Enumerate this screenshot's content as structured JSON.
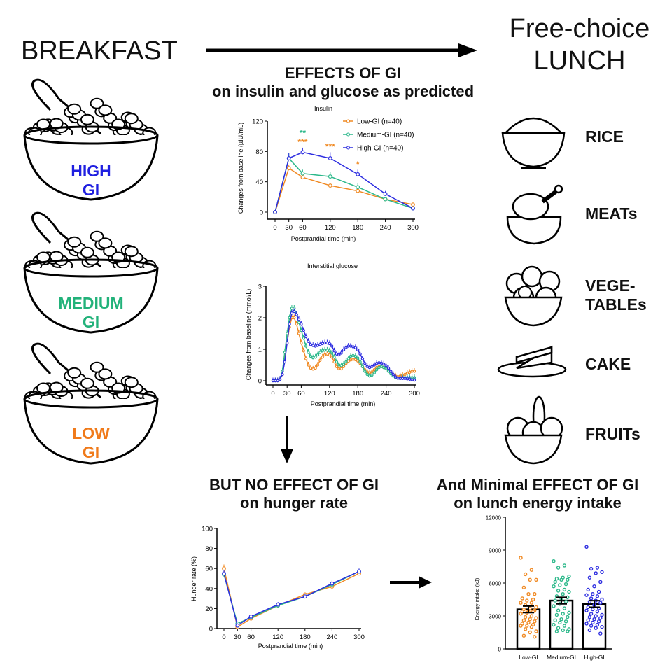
{
  "header": {
    "left_title": "BREAKFAST",
    "right_title_line1": "Free-choice",
    "right_title_line2": "LUNCH"
  },
  "sections": {
    "predicted_line1": "EFFECTS OF GI",
    "predicted_line2": "on insulin and glucose as predicted",
    "hunger_line1": "BUT NO EFFECT OF GI",
    "hunger_line2": "on hunger rate",
    "energy_line1": "And Minimal EFFECT OF GI",
    "energy_line2": "on lunch energy intake"
  },
  "breakfasts": [
    {
      "line1": "HIGH",
      "line2": "GI",
      "color": "#1f1fe0"
    },
    {
      "line1": "MEDIUM",
      "line2": "GI",
      "color": "#22b27a"
    },
    {
      "line1": "LOW",
      "line2": "GI",
      "color": "#f07a1a"
    }
  ],
  "lunch_foods": [
    {
      "label": "RICE",
      "icon": "rice-bowl-icon"
    },
    {
      "label": "MEATs",
      "icon": "chicken-leg-icon"
    },
    {
      "label": "VEGE-\nTABLEs",
      "icon": "vegetable-bowl-icon"
    },
    {
      "label": "CAKE",
      "icon": "cake-slice-icon"
    },
    {
      "label": "FRUITs",
      "icon": "fruit-bowl-icon"
    }
  ],
  "colors": {
    "low": "#f08a24",
    "medium": "#2bb88a",
    "high": "#2e2ee0"
  },
  "chart_data": [
    {
      "id": "insulin",
      "type": "line",
      "title": "Insulin",
      "xlabel": "Postprandial time (min)",
      "ylabel": "Changes from baseline (µIU/mL)",
      "xlim": [
        0,
        300
      ],
      "ylim": [
        0,
        120
      ],
      "xticks": [
        0,
        30,
        60,
        120,
        180,
        240,
        300
      ],
      "yticks": [
        0,
        40,
        80,
        120
      ],
      "x": [
        0,
        30,
        60,
        120,
        180,
        240,
        300
      ],
      "legend": "top-right",
      "series": [
        {
          "name": "Low-GI (n=40)",
          "key": "low",
          "values": [
            0,
            58,
            46,
            35,
            28,
            17,
            10
          ],
          "err": [
            0,
            4,
            3,
            3,
            2,
            3,
            2
          ]
        },
        {
          "name": "Medium-GI (n=40)",
          "key": "medium",
          "values": [
            0,
            71,
            51,
            47,
            33,
            17,
            5
          ],
          "err": [
            0,
            7,
            5,
            6,
            5,
            3,
            2
          ]
        },
        {
          "name": "High-GI (n=40)",
          "key": "high",
          "values": [
            0,
            71,
            79,
            71,
            50,
            24,
            5
          ],
          "err": [
            0,
            7,
            6,
            8,
            6,
            4,
            2
          ]
        }
      ],
      "annotations": [
        {
          "x": 60,
          "text": "**",
          "key": "medium",
          "level": 2
        },
        {
          "x": 60,
          "text": "***",
          "key": "low",
          "level": 1
        },
        {
          "x": 120,
          "text": "***",
          "key": "low",
          "level": 1
        },
        {
          "x": 180,
          "text": "*",
          "key": "low",
          "level": 1
        }
      ]
    },
    {
      "id": "glucose",
      "type": "line",
      "title": "Interstitial glucose",
      "xlabel": "Postprandial time (min)",
      "ylabel": "Changes from baseline (mmol/L)",
      "xlim": [
        0,
        300
      ],
      "ylim": [
        0,
        3
      ],
      "xticks": [
        0,
        30,
        60,
        120,
        180,
        240,
        300
      ],
      "yticks": [
        0,
        1,
        2,
        3
      ],
      "x_step": 5,
      "series": [
        {
          "name": "Low-GI",
          "key": "low",
          "values": [
            0,
            0,
            0,
            0.05,
            0.2,
            0.7,
            1.2,
            1.7,
            2.0,
            2.0,
            1.8,
            1.5,
            1.2,
            0.95,
            0.7,
            0.5,
            0.4,
            0.37,
            0.4,
            0.5,
            0.65,
            0.75,
            0.82,
            0.85,
            0.82,
            0.75,
            0.6,
            0.45,
            0.38,
            0.38,
            0.45,
            0.55,
            0.62,
            0.66,
            0.68,
            0.67,
            0.63,
            0.55,
            0.45,
            0.35,
            0.28,
            0.25,
            0.28,
            0.35,
            0.42,
            0.45,
            0.45,
            0.42,
            0.38,
            0.32,
            0.25,
            0.2,
            0.15,
            0.13,
            0.15,
            0.18,
            0.2,
            0.24,
            0.27,
            0.3,
            0.3
          ]
        },
        {
          "name": "Medium-GI",
          "key": "medium",
          "values": [
            0,
            0,
            0,
            0.05,
            0.3,
            0.9,
            1.5,
            2.0,
            2.3,
            2.3,
            2.1,
            1.85,
            1.6,
            1.35,
            1.1,
            0.9,
            0.78,
            0.73,
            0.75,
            0.82,
            0.9,
            0.95,
            0.97,
            0.97,
            0.95,
            0.88,
            0.75,
            0.6,
            0.5,
            0.48,
            0.52,
            0.6,
            0.7,
            0.78,
            0.8,
            0.78,
            0.72,
            0.6,
            0.45,
            0.3,
            0.2,
            0.15,
            0.18,
            0.25,
            0.35,
            0.42,
            0.45,
            0.42,
            0.38,
            0.3,
            0.22,
            0.15,
            0.1,
            0.08,
            0.08,
            0.1,
            0.1,
            0.1,
            0.1,
            0.1,
            0.1
          ]
        },
        {
          "name": "High-GI",
          "key": "high",
          "values": [
            0,
            0,
            0,
            0.05,
            0.2,
            0.6,
            1.2,
            1.8,
            2.15,
            2.2,
            2.1,
            1.95,
            1.8,
            1.6,
            1.4,
            1.25,
            1.15,
            1.12,
            1.1,
            1.12,
            1.15,
            1.18,
            1.2,
            1.2,
            1.18,
            1.1,
            0.95,
            0.85,
            0.82,
            0.88,
            0.98,
            1.05,
            1.1,
            1.1,
            1.08,
            1.05,
            0.98,
            0.85,
            0.7,
            0.55,
            0.45,
            0.42,
            0.45,
            0.5,
            0.55,
            0.57,
            0.56,
            0.53,
            0.48,
            0.4,
            0.3,
            0.2,
            0.12,
            0.08,
            0.07,
            0.07,
            0.07,
            0.06,
            0.05,
            0.03,
            0.02
          ]
        }
      ]
    },
    {
      "id": "hunger",
      "type": "line",
      "title": "",
      "xlabel": "Postprandial time (min)",
      "ylabel": "Hunger rate (%)",
      "xlim": [
        0,
        300
      ],
      "ylim": [
        0,
        100
      ],
      "xticks": [
        0,
        30,
        60,
        120,
        180,
        240,
        300
      ],
      "yticks": [
        0,
        20,
        40,
        60,
        80,
        100
      ],
      "x": [
        0,
        30,
        60,
        120,
        180,
        240,
        300
      ],
      "series": [
        {
          "name": "Low-GI",
          "key": "low",
          "values": [
            60,
            1.5,
            10,
            23,
            34,
            42,
            55
          ],
          "err": [
            4,
            1,
            1.5,
            2,
            2,
            2,
            2
          ]
        },
        {
          "name": "Medium-GI",
          "key": "medium",
          "values": [
            54,
            5,
            11,
            23,
            32,
            44,
            57
          ],
          "err": [
            3,
            2,
            1.5,
            2,
            2,
            3,
            2
          ]
        },
        {
          "name": "High-GI",
          "key": "high",
          "values": [
            55,
            3,
            12,
            24,
            32,
            45,
            57
          ],
          "err": [
            3,
            2,
            1.5,
            2.5,
            2,
            3,
            3
          ]
        }
      ]
    },
    {
      "id": "energy",
      "type": "bar",
      "title": "",
      "xlabel": "",
      "ylabel": "Energy intake (kJ)",
      "ylim": [
        0,
        12000
      ],
      "yticks": [
        0,
        3000,
        6000,
        9000,
        12000
      ],
      "categories": [
        "Low-GI",
        "Medium-GI",
        "High-GI"
      ],
      "keys": [
        "low",
        "medium",
        "high"
      ],
      "values": [
        3600,
        4400,
        4100
      ],
      "err": [
        300,
        300,
        300
      ],
      "points": [
        [
          8300,
          7200,
          6800,
          6300,
          6300,
          5600,
          5000,
          5000,
          4600,
          4500,
          4400,
          4200,
          4200,
          4000,
          3800,
          3700,
          3600,
          3500,
          3400,
          3400,
          3400,
          3300,
          3200,
          3000,
          2900,
          2800,
          2700,
          2600,
          2500,
          2400,
          2300,
          2200,
          2100,
          2100,
          2000,
          1800,
          1600,
          1500,
          1200,
          1100
        ],
        [
          8000,
          7600,
          7400,
          6600,
          6500,
          6400,
          6300,
          6300,
          6100,
          5900,
          5800,
          5700,
          5400,
          5300,
          5200,
          5000,
          4800,
          4700,
          4600,
          4400,
          4300,
          4100,
          3900,
          3700,
          3500,
          3300,
          3200,
          3100,
          2900,
          2700,
          2600,
          2500,
          2400,
          2200,
          2100,
          1900,
          1800,
          1700,
          1600,
          1600
        ],
        [
          9300,
          7400,
          7300,
          7000,
          6900,
          6500,
          6100,
          5700,
          5400,
          5200,
          5000,
          4900,
          4800,
          4600,
          4500,
          4400,
          4300,
          4200,
          4000,
          3800,
          3700,
          3600,
          3500,
          3400,
          3200,
          3100,
          3000,
          2900,
          2800,
          2700,
          2600,
          2500,
          2400,
          2300,
          2200,
          2100,
          2000,
          1900,
          1700,
          1400
        ]
      ]
    }
  ]
}
